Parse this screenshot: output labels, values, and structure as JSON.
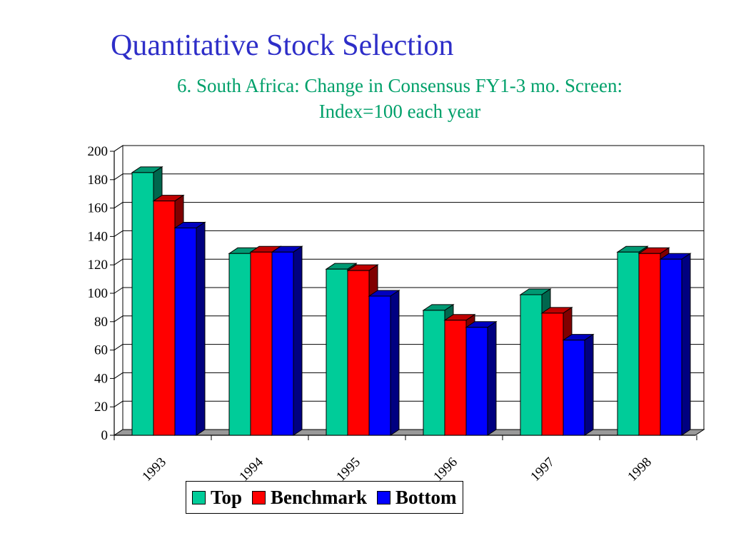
{
  "title": "Quantitative Stock Selection",
  "subtitle_line1": "6. South Africa: Change in Consensus FY1-3 mo. Screen:",
  "subtitle_line2": "Index=100 each year",
  "colors": {
    "title": "#2e2ec8",
    "subtitle": "#00a06a",
    "Top": "#00cc99",
    "Benchmark": "#ff0000",
    "Bottom": "#0000ff"
  },
  "chart_data": {
    "type": "bar",
    "style": "3d-clustered",
    "categories": [
      "1993",
      "1994",
      "1995",
      "1996",
      "1997",
      "1998"
    ],
    "series": [
      {
        "name": "Top",
        "color": "#00cc99",
        "values": [
          185,
          128,
          117,
          88,
          99,
          129
        ]
      },
      {
        "name": "Benchmark",
        "color": "#ff0000",
        "values": [
          165,
          129,
          116,
          81,
          86,
          128
        ]
      },
      {
        "name": "Bottom",
        "color": "#0000ff",
        "values": [
          146,
          129,
          98,
          76,
          67,
          124
        ]
      }
    ],
    "ylim": [
      0,
      200
    ],
    "yticks": [
      0,
      20,
      40,
      60,
      80,
      100,
      120,
      140,
      160,
      180,
      200
    ],
    "grid": true,
    "legend_position": "bottom"
  }
}
